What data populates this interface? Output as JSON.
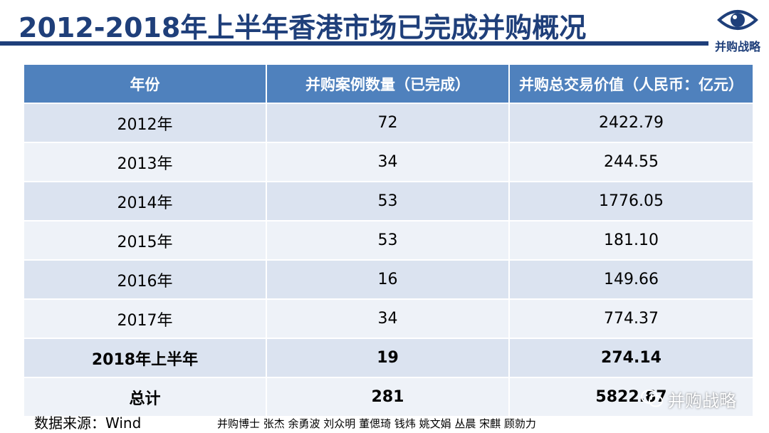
{
  "title": "2012-2018年上半年香港市场已完成并购概况",
  "logo": {
    "label": "并购战略",
    "icon": "eye-icon",
    "color": "#1f3f7a"
  },
  "table": {
    "headers": [
      "年份",
      "并购案例数量（已完成）",
      "并购总交易价值（人民币：亿元）"
    ],
    "rows": [
      {
        "year": "2012年",
        "count": "72",
        "value": "2422.79"
      },
      {
        "year": "2013年",
        "count": "34",
        "value": "244.55"
      },
      {
        "year": "2014年",
        "count": "53",
        "value": "1776.05"
      },
      {
        "year": "2015年",
        "count": "53",
        "value": "181.10"
      },
      {
        "year": "2016年",
        "count": "16",
        "value": "149.66"
      },
      {
        "year": "2017年",
        "count": "34",
        "value": "774.37"
      },
      {
        "year": "2018年上半年",
        "count": "19",
        "value": "274.14"
      },
      {
        "year": "总计",
        "count": "281",
        "value": "5822.67"
      }
    ],
    "header_color": "#4f81bd",
    "row_colors": [
      "#dbe3f0",
      "#eef2f8"
    ]
  },
  "source": "数据来源：Wind",
  "authors": "并购博士 张杰 余勇波 刘众明 董偲琦 钱炜 姚文娟 丛晨 宋麒 顾勍力",
  "watermark": {
    "label": "并购战略",
    "icon": "wechat-icon"
  }
}
